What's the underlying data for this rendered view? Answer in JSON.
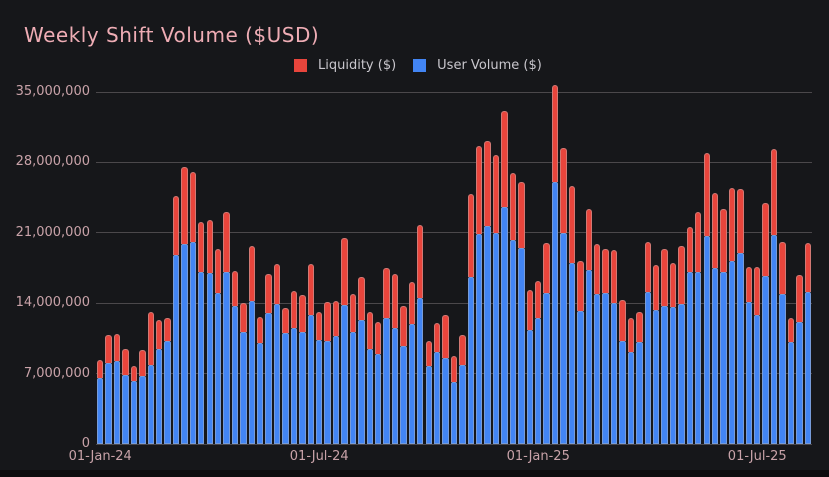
{
  "title": "Weekly Shift Volume ($USD)",
  "legend": {
    "items": [
      {
        "label": "Liquidity ($)",
        "color": "#e8453c",
        "series": "liquidity"
      },
      {
        "label": "User Volume ($)",
        "color": "#4285f4",
        "series": "user_volume"
      }
    ]
  },
  "y_axis": {
    "tick_labels": [
      "0",
      "7,000,000",
      "14,000,000",
      "21,000,000",
      "28,000,000",
      "35,000,000"
    ],
    "tick_values_millions": [
      0,
      7,
      14,
      21,
      28,
      35
    ]
  },
  "x_axis": {
    "ticks": [
      {
        "week_index": 0,
        "label": "01-Jan-24"
      },
      {
        "week_index": 26,
        "label": "01-Jul-24"
      },
      {
        "week_index": 52,
        "label": "01-Jan-25"
      },
      {
        "week_index": 78,
        "label": "01-Jul-25"
      }
    ]
  },
  "chart_data": {
    "type": "bar",
    "stacked": true,
    "title": "Weekly Shift Volume ($USD)",
    "unit": "USD millions",
    "x_unit": "week",
    "n_bars": 85,
    "ylim_millions": [
      0,
      35
    ],
    "grid": "horizontal",
    "legend_position": "top",
    "x_tick_indices": [
      0,
      26,
      52,
      78
    ],
    "x_tick_labels": [
      "01-Jan-24",
      "01-Jul-24",
      "01-Jan-25",
      "01-Jul-25"
    ],
    "series": [
      {
        "name": "User Volume ($)",
        "color": "#4285f4",
        "values": [
          6.6,
          8.1,
          8.3,
          6.9,
          6.3,
          6.8,
          7.9,
          9.4,
          10.2,
          18.8,
          19.9,
          20.1,
          17.1,
          17.0,
          15.0,
          17.1,
          13.7,
          11.1,
          14.2,
          10.0,
          13.0,
          13.9,
          11.0,
          11.5,
          11.1,
          12.8,
          10.3,
          10.2,
          10.7,
          13.8,
          11.1,
          12.3,
          9.4,
          9.0,
          12.5,
          11.5,
          9.7,
          11.9,
          14.5,
          7.8,
          9.1,
          8.6,
          6.2,
          7.9,
          16.6,
          20.9,
          21.7,
          21.0,
          23.6,
          20.3,
          19.5,
          11.3,
          12.5,
          15.0,
          26.1,
          21.0,
          18.0,
          13.2,
          17.3,
          14.9,
          15.0,
          14.0,
          10.2,
          9.1,
          10.1,
          15.1,
          13.3,
          13.7,
          13.6,
          13.9,
          17.1,
          17.1,
          20.7,
          17.5,
          17.1,
          18.2,
          19.0,
          14.1,
          12.8,
          16.7,
          20.8,
          14.9,
          10.1,
          12.1,
          15.1
        ]
      },
      {
        "name": "Liquidity ($)",
        "color": "#e8453c",
        "values": [
          1.8,
          2.7,
          2.6,
          2.5,
          1.5,
          2.5,
          5.2,
          2.9,
          2.3,
          5.9,
          7.6,
          6.9,
          5.0,
          5.3,
          4.4,
          6.0,
          3.5,
          2.9,
          5.5,
          2.6,
          3.9,
          4.0,
          2.5,
          3.7,
          3.7,
          5.1,
          2.8,
          3.9,
          3.5,
          6.7,
          3.8,
          4.3,
          3.7,
          3.1,
          5.0,
          5.4,
          4.0,
          4.2,
          7.3,
          2.4,
          2.9,
          4.2,
          2.6,
          2.9,
          8.3,
          8.7,
          8.4,
          7.7,
          9.5,
          6.6,
          6.6,
          4.0,
          3.7,
          5.0,
          9.6,
          8.4,
          7.7,
          5.0,
          6.1,
          5.0,
          4.4,
          5.3,
          4.1,
          3.4,
          3.0,
          5.0,
          4.5,
          5.7,
          4.4,
          5.8,
          4.5,
          6.0,
          8.2,
          7.5,
          6.3,
          7.3,
          6.4,
          3.5,
          4.8,
          7.3,
          8.5,
          5.2,
          2.4,
          4.7,
          4.9
        ]
      }
    ]
  }
}
